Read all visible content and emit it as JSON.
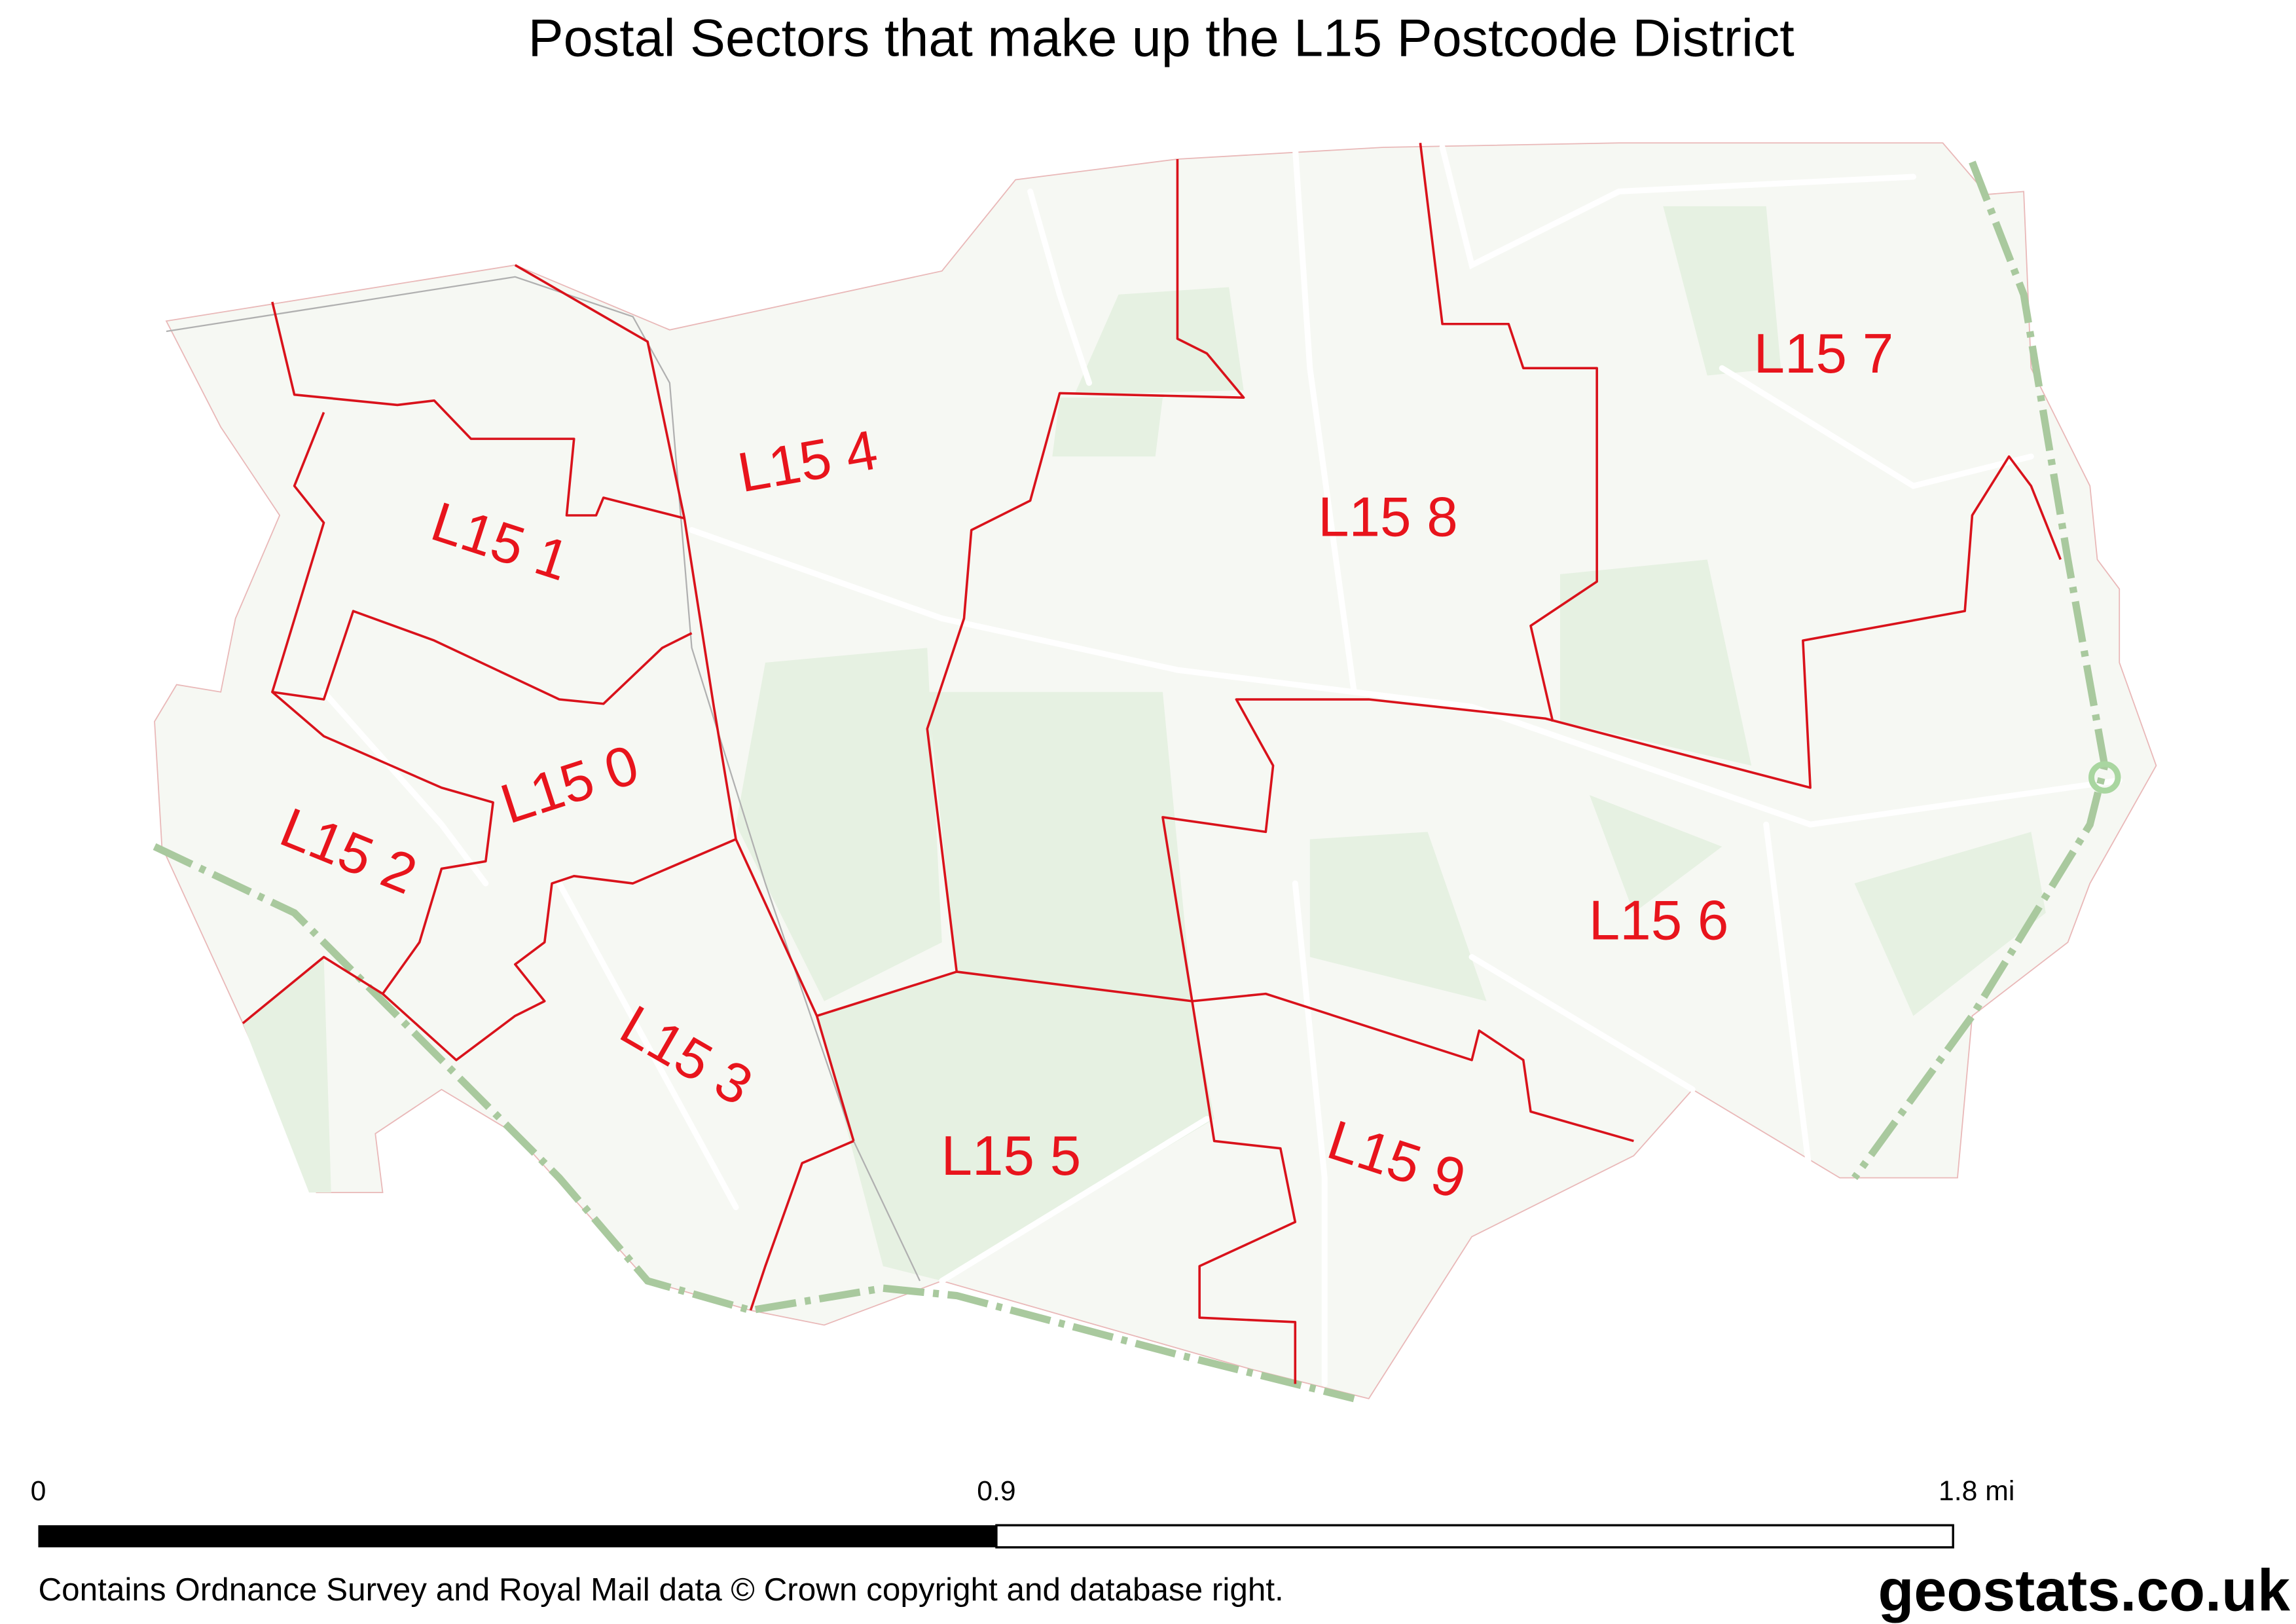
{
  "title": "Postal Sectors that make up the L15 Postcode District",
  "sectors": [
    {
      "label": "L15 0"
    },
    {
      "label": "L15 1"
    },
    {
      "label": "L15 2"
    },
    {
      "label": "L15 3"
    },
    {
      "label": "L15 4"
    },
    {
      "label": "L15 5"
    },
    {
      "label": "L15 6"
    },
    {
      "label": "L15 7"
    },
    {
      "label": "L15 8"
    },
    {
      "label": "L15 9"
    }
  ],
  "scale_bar": {
    "ticks": [
      "0",
      "0.9",
      "1.8 mi"
    ]
  },
  "attribution": "Contains Ordnance Survey and Royal Mail data © Crown copyright and database right.",
  "logo": "geostats.co.uk",
  "colors": {
    "boundary": "#d9121b",
    "label": "#e8141c",
    "land": "#f6f8f3",
    "park": "#e6f1e2",
    "railway": "#a9d6a0"
  }
}
